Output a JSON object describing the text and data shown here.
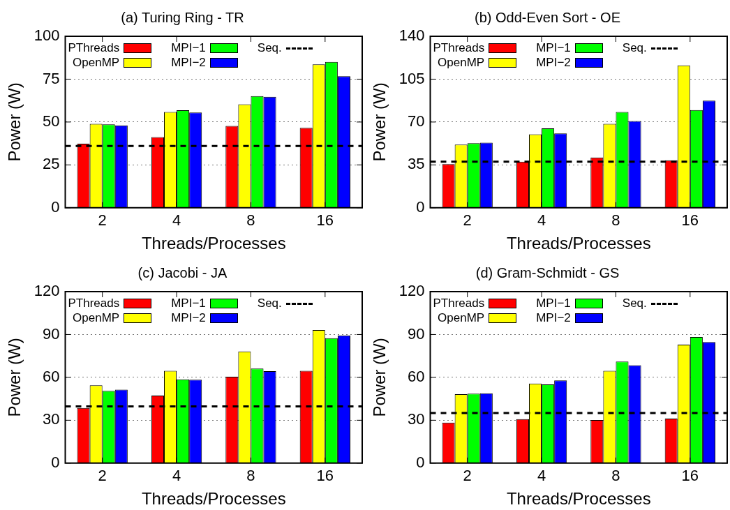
{
  "chart_data": [
    {
      "type": "bar",
      "title": "(a) Turing Ring - TR",
      "xlabel": "Threads/Processes",
      "ylabel": "Power (W)",
      "categories": [
        "2",
        "4",
        "8",
        "16"
      ],
      "series": [
        {
          "name": "PThreads",
          "color": "#ff0000",
          "values": [
            37.3,
            41.2,
            47.7,
            46.6
          ]
        },
        {
          "name": "OpenMP",
          "color": "#ffff00",
          "values": [
            48.9,
            55.9,
            60.3,
            83.6
          ]
        },
        {
          "name": "MPI−1",
          "color": "#00ff00",
          "values": [
            48.6,
            56.9,
            65.1,
            85.0
          ]
        },
        {
          "name": "MPI−2",
          "color": "#0000ff",
          "values": [
            48.0,
            55.6,
            64.7,
            76.7
          ]
        }
      ],
      "ref_lines": [
        {
          "axis": "y",
          "value": 36.0,
          "label": "Seq.",
          "color": "#000000",
          "line_style": "dashed"
        }
      ],
      "ylim": [
        0,
        100
      ],
      "yticks": [
        0,
        25,
        50,
        75,
        100
      ],
      "grid": "y",
      "legend": "top"
    },
    {
      "type": "bar",
      "title": "(b) Odd-Even Sort - OE",
      "xlabel": "Threads/Processes",
      "ylabel": "Power (W)",
      "categories": [
        "2",
        "4",
        "8",
        "16"
      ],
      "series": [
        {
          "name": "PThreads",
          "color": "#ff0000",
          "values": [
            35.6,
            37.6,
            41.0,
            38.7
          ]
        },
        {
          "name": "OpenMP",
          "color": "#ffff00",
          "values": [
            51.6,
            60.0,
            68.5,
            116.2
          ]
        },
        {
          "name": "MPI−1",
          "color": "#00ff00",
          "values": [
            52.7,
            64.8,
            78.2,
            79.7
          ]
        },
        {
          "name": "MPI−2",
          "color": "#0000ff",
          "values": [
            53.1,
            60.7,
            70.8,
            87.5
          ]
        }
      ],
      "ref_lines": [
        {
          "axis": "y",
          "value": 37.6,
          "label": "Seq.",
          "color": "#000000",
          "line_style": "dashed"
        }
      ],
      "ylim": [
        0,
        140
      ],
      "yticks": [
        0,
        35,
        70,
        105,
        140
      ],
      "grid": "y",
      "legend": "top"
    },
    {
      "type": "bar",
      "title": "(c) Jacobi - JA",
      "xlabel": "Threads/Processes",
      "ylabel": "Power (W)",
      "categories": [
        "2",
        "4",
        "8",
        "16"
      ],
      "series": [
        {
          "name": "PThreads",
          "color": "#ff0000",
          "values": [
            38.6,
            47.3,
            60.5,
            64.6
          ]
        },
        {
          "name": "OpenMP",
          "color": "#ffff00",
          "values": [
            54.4,
            64.6,
            78.1,
            93.1
          ]
        },
        {
          "name": "MPI−1",
          "color": "#00ff00",
          "values": [
            50.5,
            58.6,
            66.2,
            87.4
          ]
        },
        {
          "name": "MPI−2",
          "color": "#0000ff",
          "values": [
            51.4,
            58.4,
            64.4,
            89.4
          ]
        }
      ],
      "ref_lines": [
        {
          "axis": "y",
          "value": 39.7,
          "label": "Seq.",
          "color": "#000000",
          "line_style": "dashed"
        }
      ],
      "ylim": [
        0,
        120
      ],
      "yticks": [
        0,
        30,
        60,
        90,
        120
      ],
      "grid": "y",
      "legend": "top"
    },
    {
      "type": "bar",
      "title": "(d) Gram-Schmidt - GS",
      "xlabel": "Threads/Processes",
      "ylabel": "Power (W)",
      "categories": [
        "2",
        "4",
        "8",
        "16"
      ],
      "series": [
        {
          "name": "PThreads",
          "color": "#ff0000",
          "values": [
            28.4,
            30.8,
            30.2,
            31.2
          ]
        },
        {
          "name": "OpenMP",
          "color": "#ffff00",
          "values": [
            48.2,
            55.7,
            64.6,
            82.9
          ]
        },
        {
          "name": "MPI−1",
          "color": "#00ff00",
          "values": [
            48.6,
            55.1,
            71.1,
            88.3
          ]
        },
        {
          "name": "MPI−2",
          "color": "#0000ff",
          "values": [
            48.8,
            57.9,
            68.5,
            84.7
          ]
        }
      ],
      "ref_lines": [
        {
          "axis": "y",
          "value": 35.1,
          "label": "Seq.",
          "color": "#000000",
          "line_style": "dashed"
        }
      ],
      "ylim": [
        0,
        120
      ],
      "yticks": [
        0,
        30,
        60,
        90,
        120
      ],
      "grid": "y",
      "legend": "top"
    }
  ]
}
